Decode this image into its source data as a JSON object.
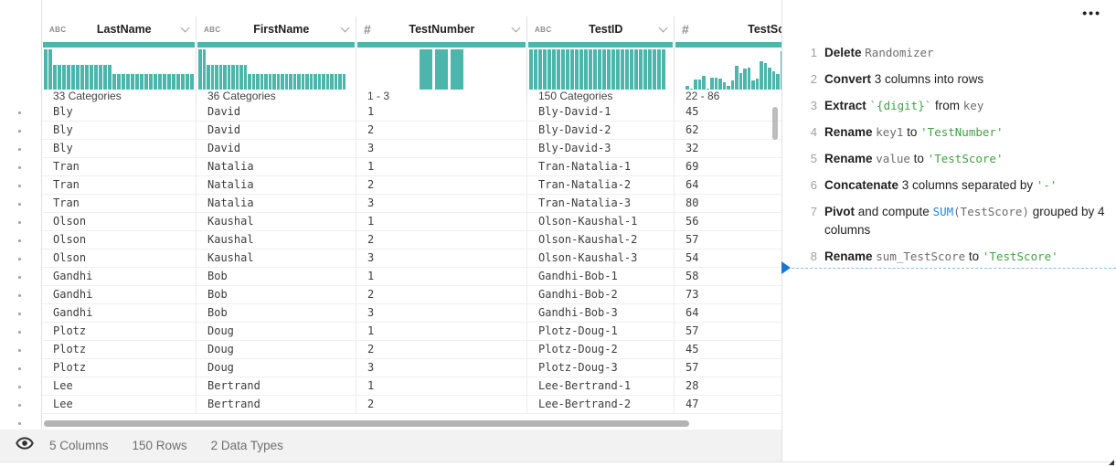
{
  "colors": {
    "accent_teal": "#4db6ac",
    "recipe_green": "#43a047",
    "recipe_blue": "#1e88e5",
    "insert_blue": "#1976d2"
  },
  "grid": {
    "columns": [
      {
        "type_icon": "abc-type-icon",
        "type_label": "ABC",
        "name": "LastName",
        "summary": "33 Categories"
      },
      {
        "type_icon": "abc-type-icon",
        "type_label": "ABC",
        "name": "FirstName",
        "summary": "36 Categories"
      },
      {
        "type_icon": "number-type-icon",
        "type_label": "#",
        "name": "TestNumber",
        "summary": "1 - 3"
      },
      {
        "type_icon": "abc-type-icon",
        "type_label": "ABC",
        "name": "TestID",
        "summary": "150 Categories"
      },
      {
        "type_icon": "number-type-icon",
        "type_label": "#",
        "name": "TestScore",
        "summary": "22 - 86"
      }
    ],
    "histograms": [
      [
        100,
        100,
        62,
        62,
        62,
        62,
        62,
        62,
        62,
        62,
        62,
        62,
        62,
        62,
        62,
        38,
        38,
        38,
        38,
        38,
        38,
        38,
        38,
        38,
        38,
        38,
        38,
        38,
        38,
        38,
        38,
        38,
        38
      ],
      [
        100,
        100,
        62,
        62,
        62,
        62,
        62,
        62,
        62,
        62,
        62,
        62,
        38,
        38,
        38,
        38,
        38,
        38,
        38,
        38,
        38,
        38,
        38,
        38,
        38,
        38,
        38,
        38,
        38,
        38,
        38,
        38,
        38,
        38,
        38,
        38
      ],
      [
        100,
        100,
        100
      ],
      [
        100,
        100,
        100,
        100,
        100,
        100,
        100,
        100,
        100,
        100,
        100,
        100,
        100,
        100,
        100,
        100,
        100,
        100,
        100,
        100,
        100,
        100,
        100,
        100,
        100,
        100,
        100,
        100,
        100,
        100
      ],
      [
        8,
        2,
        25,
        25,
        35,
        2,
        30,
        30,
        28,
        18,
        8,
        22,
        60,
        40,
        52,
        55,
        22,
        28,
        70,
        65,
        55,
        45,
        38,
        95
      ]
    ],
    "rows": [
      [
        "Bly",
        "David",
        "1",
        "Bly-David-1",
        "45"
      ],
      [
        "Bly",
        "David",
        "2",
        "Bly-David-2",
        "62"
      ],
      [
        "Bly",
        "David",
        "3",
        "Bly-David-3",
        "32"
      ],
      [
        "Tran",
        "Natalia",
        "1",
        "Tran-Natalia-1",
        "69"
      ],
      [
        "Tran",
        "Natalia",
        "2",
        "Tran-Natalia-2",
        "64"
      ],
      [
        "Tran",
        "Natalia",
        "3",
        "Tran-Natalia-3",
        "80"
      ],
      [
        "Olson",
        "Kaushal",
        "1",
        "Olson-Kaushal-1",
        "56"
      ],
      [
        "Olson",
        "Kaushal",
        "2",
        "Olson-Kaushal-2",
        "57"
      ],
      [
        "Olson",
        "Kaushal",
        "3",
        "Olson-Kaushal-3",
        "54"
      ],
      [
        "Gandhi",
        "Bob",
        "1",
        "Gandhi-Bob-1",
        "58"
      ],
      [
        "Gandhi",
        "Bob",
        "2",
        "Gandhi-Bob-2",
        "73"
      ],
      [
        "Gandhi",
        "Bob",
        "3",
        "Gandhi-Bob-3",
        "64"
      ],
      [
        "Plotz",
        "Doug",
        "1",
        "Plotz-Doug-1",
        "57"
      ],
      [
        "Plotz",
        "Doug",
        "2",
        "Plotz-Doug-2",
        "45"
      ],
      [
        "Plotz",
        "Doug",
        "3",
        "Plotz-Doug-3",
        "57"
      ],
      [
        "Lee",
        "Bertrand",
        "1",
        "Lee-Bertrand-1",
        "28"
      ],
      [
        "Lee",
        "Bertrand",
        "2",
        "Lee-Bertrand-2",
        "47"
      ]
    ]
  },
  "status_bar": {
    "columns_count": "5 Columns",
    "rows_count": "150 Rows",
    "data_types_count": "2 Data Types"
  },
  "recipe": {
    "more_menu": "•••",
    "steps": [
      {
        "num": "1",
        "parts": [
          [
            "b",
            "Delete "
          ],
          [
            "m",
            "Randomizer"
          ]
        ]
      },
      {
        "num": "2",
        "parts": [
          [
            "b",
            "Convert "
          ],
          [
            "p",
            "3 columns into rows"
          ]
        ]
      },
      {
        "num": "3",
        "parts": [
          [
            "b",
            "Extract "
          ],
          [
            "g",
            "`{digit}`"
          ],
          [
            "p",
            " from "
          ],
          [
            "m",
            "key"
          ]
        ]
      },
      {
        "num": "4",
        "parts": [
          [
            "b",
            "Rename "
          ],
          [
            "m",
            "key1"
          ],
          [
            "p",
            " to "
          ],
          [
            "g",
            "'TestNumber'"
          ]
        ]
      },
      {
        "num": "5",
        "parts": [
          [
            "b",
            "Rename "
          ],
          [
            "m",
            "value"
          ],
          [
            "p",
            " to "
          ],
          [
            "g",
            "'TestScore'"
          ]
        ]
      },
      {
        "num": "6",
        "parts": [
          [
            "b",
            "Concatenate "
          ],
          [
            "p",
            "3 columns separated by "
          ],
          [
            "g",
            "'-'"
          ]
        ]
      },
      {
        "num": "7",
        "parts": [
          [
            "b",
            "Pivot "
          ],
          [
            "p",
            "and compute "
          ],
          [
            "u",
            "SUM"
          ],
          [
            "m",
            "(TestScore)"
          ],
          [
            "p",
            " grouped by 4"
          ],
          [
            "br",
            ""
          ],
          [
            "p",
            "columns"
          ]
        ]
      },
      {
        "num": "8",
        "parts": [
          [
            "b",
            "Rename "
          ],
          [
            "m",
            "sum_TestScore"
          ],
          [
            "p",
            " to "
          ],
          [
            "g",
            "'TestScore'"
          ]
        ]
      }
    ]
  }
}
